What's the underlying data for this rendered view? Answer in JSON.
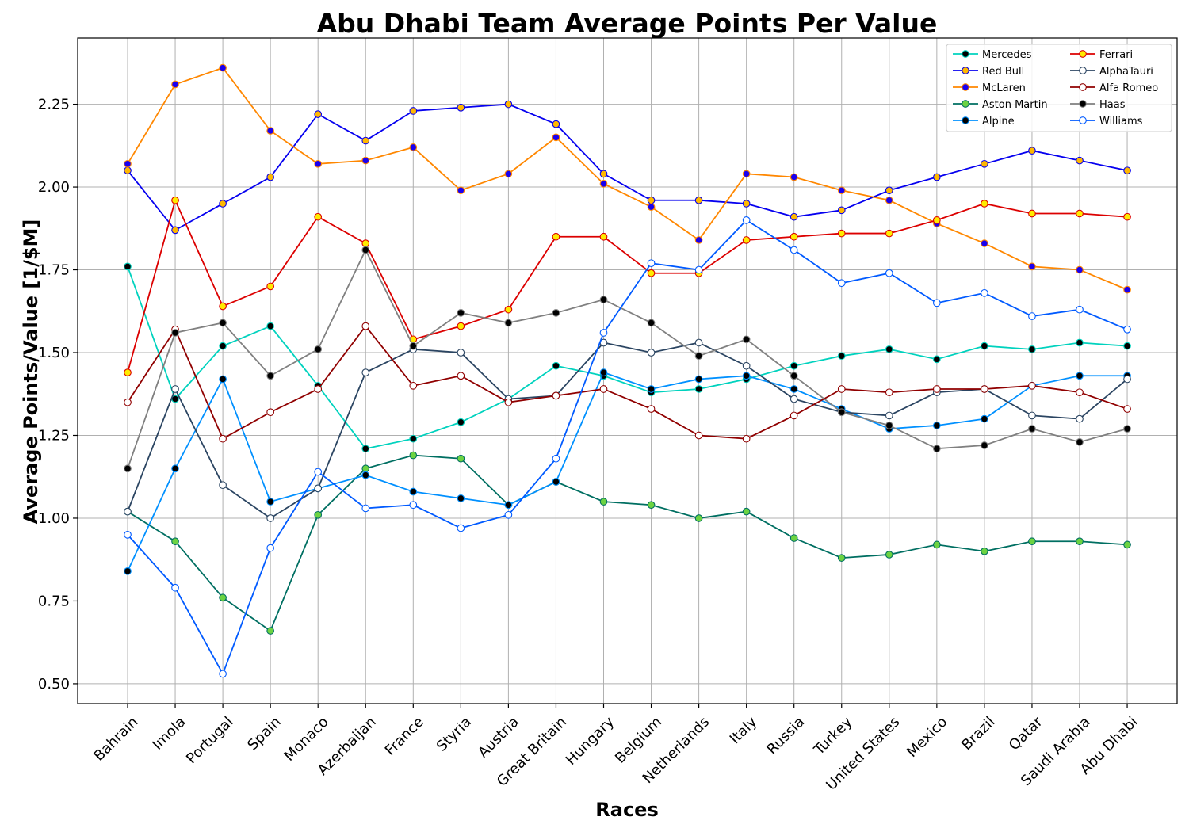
{
  "chart_data": {
    "type": "line",
    "title": "Abu Dhabi Team Average Points Per Value",
    "xlabel": "Races",
    "ylabel": "Average Points/Value [1/$M]",
    "ylim": [
      0.44,
      2.45
    ],
    "yticks": [
      "0.50",
      "0.75",
      "1.00",
      "1.25",
      "1.50",
      "1.75",
      "2.00",
      "2.25"
    ],
    "grid": true,
    "legend_position": "top-right",
    "categories": [
      "Bahrain",
      "Imola",
      "Portugal",
      "Spain",
      "Monaco",
      "Azerbaijan",
      "France",
      "Styria",
      "Austria",
      "Great Britain",
      "Hungary",
      "Belgium",
      "Netherlands",
      "Italy",
      "Russia",
      "Turkey",
      "United States",
      "Mexico",
      "Brazil",
      "Qatar",
      "Saudi Arabia",
      "Abu Dhabi"
    ],
    "series": [
      {
        "name": "Mercedes",
        "color": "#00d2be",
        "marker": "#000000",
        "values": [
          1.76,
          1.36,
          1.52,
          1.58,
          1.4,
          1.21,
          1.24,
          1.29,
          1.36,
          1.46,
          1.43,
          1.38,
          1.39,
          1.42,
          1.46,
          1.49,
          1.51,
          1.48,
          1.52,
          1.51,
          1.53,
          1.52
        ]
      },
      {
        "name": "Red Bull",
        "color": "#0600ef",
        "marker": "#ffb800",
        "values": [
          2.05,
          1.87,
          1.95,
          2.03,
          2.22,
          2.14,
          2.23,
          2.24,
          2.25,
          2.19,
          2.04,
          1.96,
          1.96,
          1.95,
          1.91,
          1.93,
          1.99,
          2.03,
          2.07,
          2.11,
          2.08,
          2.05
        ]
      },
      {
        "name": "McLaren",
        "color": "#ff8700",
        "marker": "#1a00ef",
        "values": [
          2.07,
          2.31,
          2.36,
          2.17,
          2.07,
          2.08,
          2.12,
          1.99,
          2.04,
          2.15,
          2.01,
          1.94,
          1.84,
          2.04,
          2.03,
          1.99,
          1.96,
          1.89,
          1.83,
          1.76,
          1.75,
          1.69
        ]
      },
      {
        "name": "Aston Martin",
        "color": "#006f62",
        "marker": "#6cd342",
        "values": [
          1.02,
          0.93,
          0.76,
          0.66,
          1.01,
          1.15,
          1.19,
          1.18,
          1.04,
          1.11,
          1.05,
          1.04,
          1.0,
          1.02,
          0.94,
          0.88,
          0.89,
          0.92,
          0.9,
          0.93,
          0.93,
          0.92
        ]
      },
      {
        "name": "Alpine",
        "color": "#0090ff",
        "marker": "#000000",
        "values": [
          0.84,
          1.15,
          1.42,
          1.05,
          1.09,
          1.13,
          1.08,
          1.06,
          1.04,
          1.11,
          1.44,
          1.39,
          1.42,
          1.43,
          1.39,
          1.33,
          1.27,
          1.28,
          1.3,
          1.4,
          1.43,
          1.43
        ]
      },
      {
        "name": "Ferrari",
        "color": "#dc0000",
        "marker": "#ffeb00",
        "values": [
          1.44,
          1.96,
          1.64,
          1.7,
          1.91,
          1.83,
          1.54,
          1.58,
          1.63,
          1.85,
          1.85,
          1.74,
          1.74,
          1.84,
          1.85,
          1.86,
          1.86,
          1.9,
          1.95,
          1.92,
          1.92,
          1.91
        ]
      },
      {
        "name": "AlphaTauri",
        "color": "#2b4562",
        "marker": "#ffffff",
        "values": [
          1.02,
          1.39,
          1.1,
          1.0,
          1.09,
          1.44,
          1.51,
          1.5,
          1.36,
          1.37,
          1.53,
          1.5,
          1.53,
          1.46,
          1.36,
          1.32,
          1.31,
          1.38,
          1.39,
          1.31,
          1.3,
          1.42
        ]
      },
      {
        "name": "Alfa Romeo",
        "color": "#900000",
        "marker": "#ffffff",
        "values": [
          1.35,
          1.57,
          1.24,
          1.32,
          1.39,
          1.58,
          1.4,
          1.43,
          1.35,
          1.37,
          1.39,
          1.33,
          1.25,
          1.24,
          1.31,
          1.39,
          1.38,
          1.39,
          1.39,
          1.4,
          1.38,
          1.33
        ]
      },
      {
        "name": "Haas",
        "color": "#808080",
        "marker": "#000000",
        "values": [
          1.15,
          1.56,
          1.59,
          1.43,
          1.51,
          1.81,
          1.52,
          1.62,
          1.59,
          1.62,
          1.66,
          1.59,
          1.49,
          1.54,
          1.43,
          1.32,
          1.28,
          1.21,
          1.22,
          1.27,
          1.23,
          1.27
        ]
      },
      {
        "name": "Williams",
        "color": "#005aff",
        "marker": "#ffffff",
        "values": [
          0.95,
          0.79,
          0.53,
          0.91,
          1.14,
          1.03,
          1.04,
          0.97,
          1.01,
          1.18,
          1.56,
          1.77,
          1.75,
          1.9,
          1.81,
          1.71,
          1.74,
          1.65,
          1.68,
          1.61,
          1.63,
          1.57
        ]
      }
    ]
  }
}
